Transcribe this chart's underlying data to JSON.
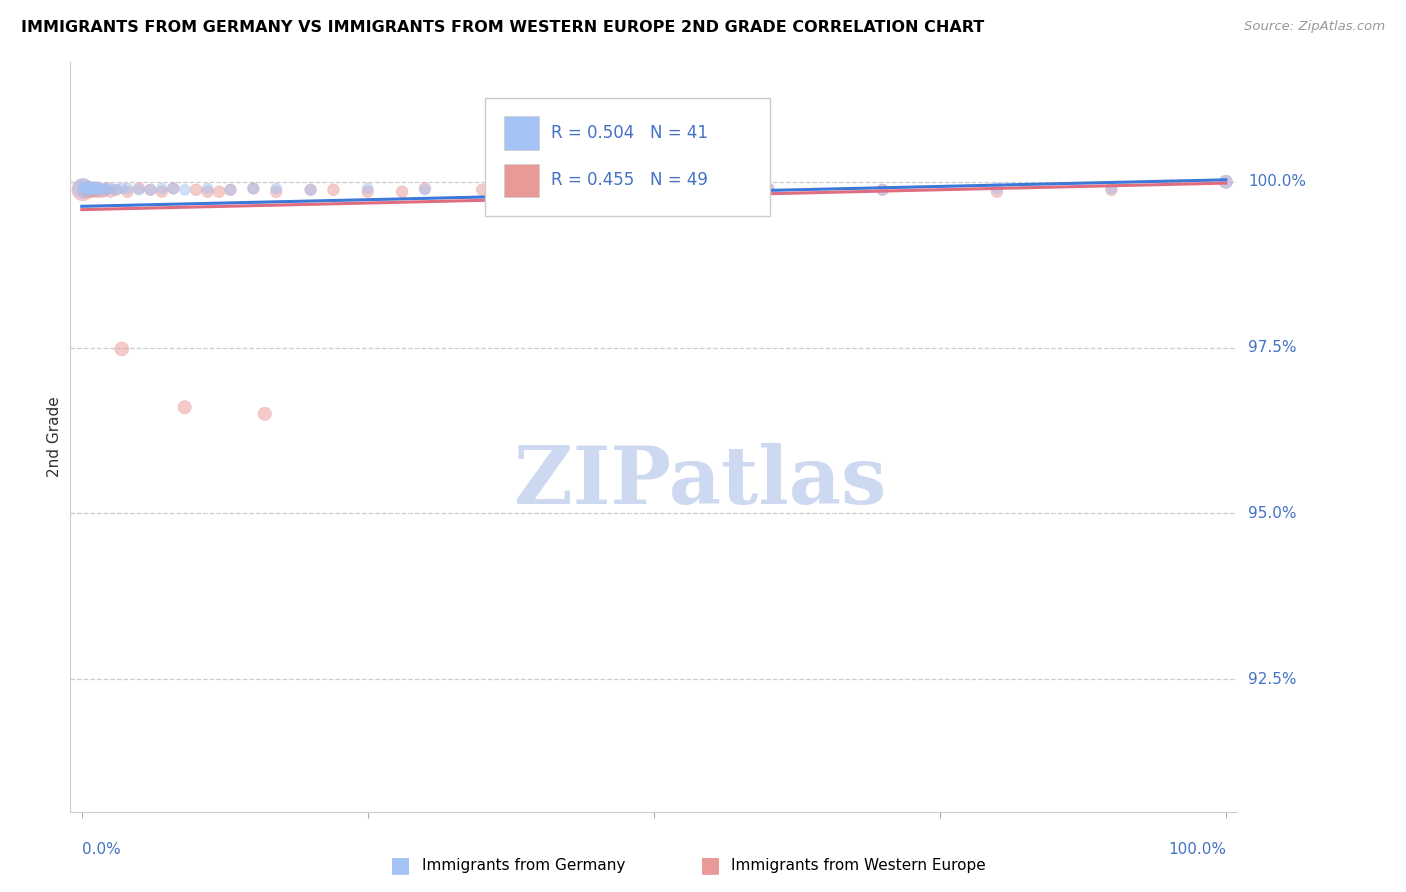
{
  "title": "IMMIGRANTS FROM GERMANY VS IMMIGRANTS FROM WESTERN EUROPE 2ND GRADE CORRELATION CHART",
  "source": "Source: ZipAtlas.com",
  "ylabel": "2nd Grade",
  "blue_color": "#a4c2f4",
  "pink_color": "#ea9999",
  "blue_line_color": "#3c78d8",
  "pink_line_color": "#e06c80",
  "legend_r_blue": "R = 0.504",
  "legend_n_blue": "N = 41",
  "legend_r_pink": "R = 0.455",
  "legend_n_pink": "N = 49",
  "watermark_text": "ZIPatlas",
  "watermark_color": "#ccd9f0",
  "yaxis_ticks": [
    1.0,
    0.975,
    0.95,
    0.925
  ],
  "yaxis_labels": [
    "100.0%",
    "97.5%",
    "95.0%",
    "92.5%"
  ],
  "xlim": [
    -0.01,
    1.01
  ],
  "ylim": [
    0.905,
    1.018
  ],
  "blue_x": [
    0.001,
    0.002,
    0.003,
    0.004,
    0.005,
    0.006,
    0.007,
    0.008,
    0.009,
    0.01,
    0.011,
    0.012,
    0.013,
    0.014,
    0.015,
    0.018,
    0.02,
    0.022,
    0.025,
    0.03,
    0.04,
    0.05,
    0.07,
    0.09,
    0.11,
    0.15,
    0.2,
    0.25,
    0.3,
    0.4,
    0.5,
    0.6,
    0.7,
    0.8,
    0.9,
    1.0,
    0.035,
    0.06,
    0.08,
    0.13,
    0.17
  ],
  "blue_y": [
    0.999,
    0.9992,
    0.999,
    0.9992,
    0.9988,
    0.999,
    0.9992,
    0.9988,
    0.999,
    0.9992,
    0.9988,
    0.999,
    0.9992,
    0.9988,
    0.999,
    0.9988,
    0.999,
    0.9988,
    0.999,
    0.9988,
    0.999,
    0.9988,
    0.999,
    0.9988,
    0.999,
    0.999,
    0.9988,
    0.999,
    0.9988,
    0.999,
    0.9988,
    0.999,
    0.9988,
    0.999,
    0.999,
    1.0,
    0.999,
    0.9988,
    0.999,
    0.9988,
    0.999
  ],
  "blue_sizes": [
    200,
    80,
    70,
    60,
    60,
    60,
    60,
    60,
    60,
    60,
    60,
    60,
    60,
    60,
    60,
    60,
    60,
    60,
    60,
    60,
    60,
    60,
    60,
    60,
    60,
    60,
    60,
    60,
    60,
    60,
    60,
    60,
    60,
    60,
    60,
    90,
    60,
    60,
    60,
    60,
    60
  ],
  "pink_x": [
    0.001,
    0.002,
    0.003,
    0.004,
    0.005,
    0.006,
    0.007,
    0.008,
    0.009,
    0.01,
    0.011,
    0.012,
    0.013,
    0.014,
    0.015,
    0.018,
    0.02,
    0.022,
    0.025,
    0.03,
    0.04,
    0.05,
    0.06,
    0.07,
    0.08,
    0.1,
    0.12,
    0.15,
    0.2,
    0.25,
    0.3,
    0.4,
    0.5,
    0.6,
    0.7,
    0.8,
    0.9,
    1.0,
    0.035,
    0.16,
    0.09,
    0.11,
    0.13,
    0.17,
    0.22,
    0.28,
    0.35,
    0.45,
    0.55
  ],
  "pink_y": [
    0.9988,
    0.9985,
    0.999,
    0.9988,
    0.9985,
    0.9992,
    0.9988,
    0.9985,
    0.999,
    0.9988,
    0.9985,
    0.999,
    0.9988,
    0.9985,
    0.999,
    0.9985,
    0.9988,
    0.999,
    0.9985,
    0.9988,
    0.9985,
    0.999,
    0.9988,
    0.9985,
    0.999,
    0.9988,
    0.9985,
    0.999,
    0.9988,
    0.9985,
    0.999,
    0.9988,
    0.9985,
    0.999,
    0.9988,
    0.9985,
    0.9988,
    1.0,
    0.9748,
    0.965,
    0.966,
    0.9985,
    0.9988,
    0.9985,
    0.9988,
    0.9985,
    0.9988,
    0.9985,
    0.9988
  ],
  "pink_sizes": [
    250,
    90,
    80,
    70,
    70,
    70,
    70,
    70,
    70,
    70,
    70,
    70,
    70,
    70,
    70,
    70,
    70,
    70,
    70,
    70,
    70,
    70,
    70,
    70,
    70,
    70,
    70,
    70,
    70,
    70,
    70,
    70,
    70,
    70,
    70,
    70,
    70,
    90,
    100,
    90,
    90,
    70,
    70,
    70,
    70,
    70,
    70,
    70,
    70
  ],
  "blue_trend_x0": 0.0,
  "blue_trend_y0": 0.9963,
  "blue_trend_x1": 1.0,
  "blue_trend_y1": 1.0003,
  "pink_trend_x0": 0.0,
  "pink_trend_y0": 0.9958,
  "pink_trend_x1": 1.0,
  "pink_trend_y1": 0.9998
}
